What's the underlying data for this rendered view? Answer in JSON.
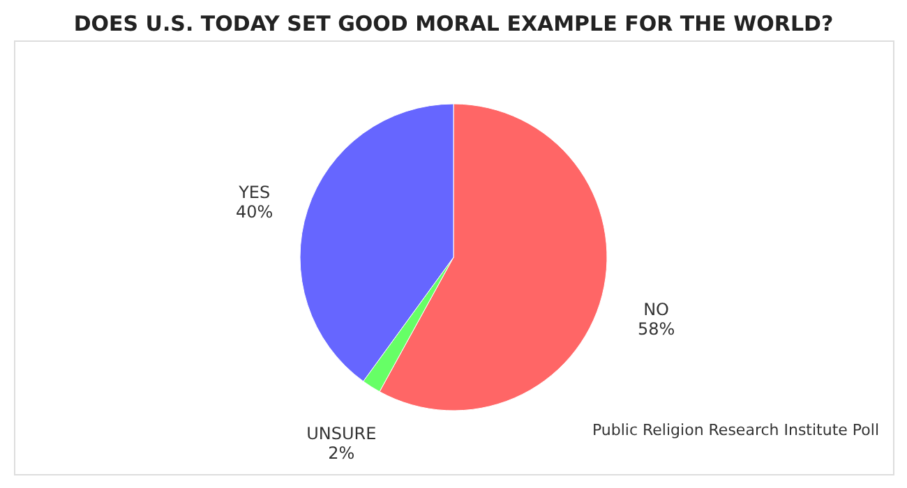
{
  "chart_data": {
    "type": "pie",
    "title": "DOES U.S. TODAY SET GOOD MORAL EXAMPLE FOR THE WORLD?",
    "categories": [
      "NO",
      "UNSURE",
      "YES"
    ],
    "values": [
      58,
      2,
      40
    ],
    "colors": [
      "#ff6666",
      "#66ff66",
      "#6666ff"
    ],
    "value_labels": [
      "58%",
      "2%",
      "40%"
    ],
    "legend": false,
    "annotations": [
      "Public Religion Research Institute Poll"
    ]
  }
}
